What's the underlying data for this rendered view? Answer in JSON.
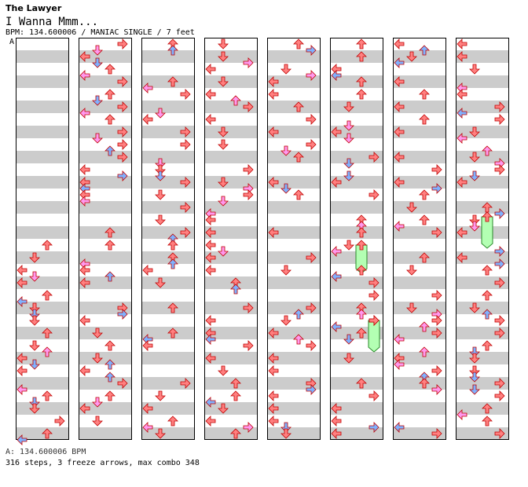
{
  "header": {
    "artist": "The Lawyer",
    "title": "I Wanna Mmm...",
    "info": "BPM: 134.600006 / MANIAC SINGLE / 7 feet"
  },
  "chart": {
    "bpm_marker": "A",
    "column_count": 8,
    "measures_per_column": 8,
    "beats_per_measure": 4,
    "lanes": [
      "left",
      "down",
      "up",
      "right"
    ],
    "colors": {
      "quarter": "#ff8080",
      "eighth": "#7fb2ff",
      "sixteenth": "#ff99ee",
      "freeze": "#b3ffb3",
      "stripe": "#cccccc",
      "border": "#000000"
    },
    "freeze_arrows": [
      {
        "column": 6,
        "lane": "up",
        "start_beat": 16,
        "end_beat": 18.25
      },
      {
        "column": 6,
        "lane": "right",
        "start_beat": 22,
        "end_beat": 24.5
      },
      {
        "column": 8,
        "lane": "up",
        "start_beat": 13.75,
        "end_beat": 16.25
      }
    ]
  },
  "footer": {
    "bpm_line": "A: 134.600006 BPM",
    "stats": "316 steps, 3 freeze arrows, max combo 348"
  }
}
